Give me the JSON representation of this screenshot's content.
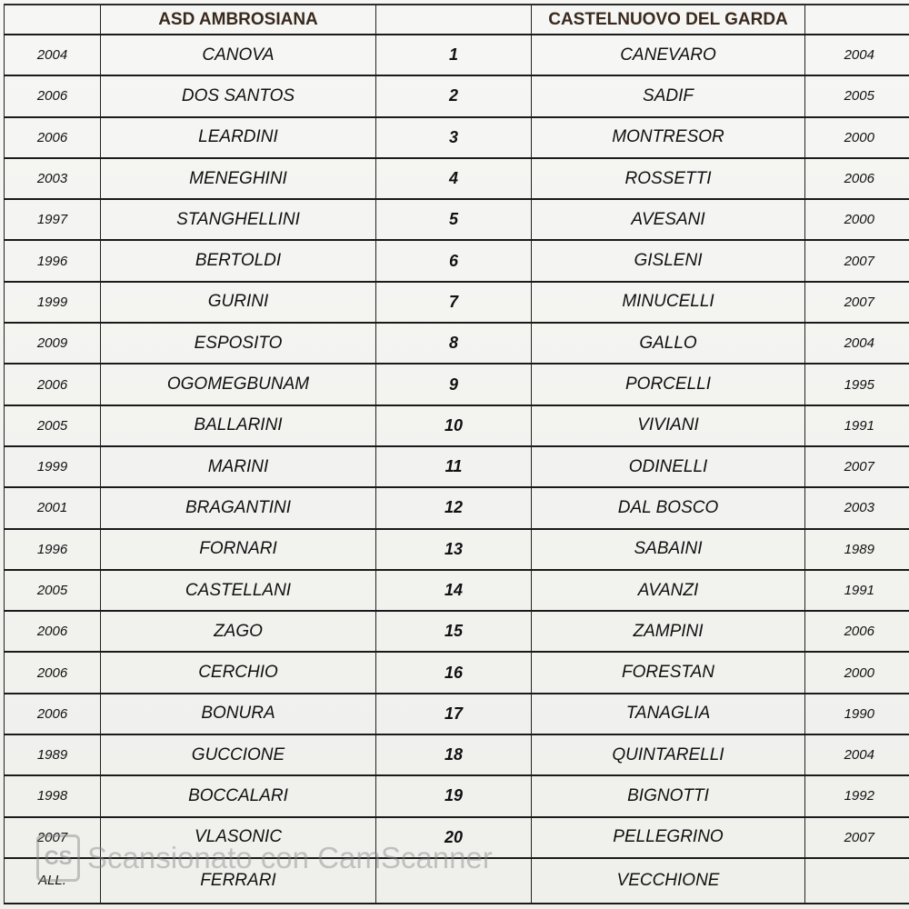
{
  "header": {
    "home_team": "ASD AMBROSIANA",
    "away_team": "CASTELNUOVO DEL GARDA"
  },
  "rows": [
    {
      "home_year": "2004",
      "home": "CANOVA",
      "num": "1",
      "away": "CANEVARO",
      "away_year": "2004"
    },
    {
      "home_year": "2006",
      "home": "DOS SANTOS",
      "num": "2",
      "away": "SADIF",
      "away_year": "2005"
    },
    {
      "home_year": "2006",
      "home": "LEARDINI",
      "num": "3",
      "away": "MONTRESOR",
      "away_year": "2000"
    },
    {
      "home_year": "2003",
      "home": "MENEGHINI",
      "num": "4",
      "away": "ROSSETTI",
      "away_year": "2006"
    },
    {
      "home_year": "1997",
      "home": "STANGHELLINI",
      "num": "5",
      "away": "AVESANI",
      "away_year": "2000"
    },
    {
      "home_year": "1996",
      "home": "BERTOLDI",
      "num": "6",
      "away": "GISLENI",
      "away_year": "2007"
    },
    {
      "home_year": "1999",
      "home": "GURINI",
      "num": "7",
      "away": "MINUCELLI",
      "away_year": "2007"
    },
    {
      "home_year": "2009",
      "home": "ESPOSITO",
      "num": "8",
      "away": "GALLO",
      "away_year": "2004"
    },
    {
      "home_year": "2006",
      "home": "OGOMEGBUNAM",
      "num": "9",
      "away": "PORCELLI",
      "away_year": "1995"
    },
    {
      "home_year": "2005",
      "home": "BALLARINI",
      "num": "10",
      "away": "VIVIANI",
      "away_year": "1991"
    },
    {
      "home_year": "1999",
      "home": "MARINI",
      "num": "11",
      "away": "ODINELLI",
      "away_year": "2007"
    },
    {
      "home_year": "2001",
      "home": "BRAGANTINI",
      "num": "12",
      "away": "DAL BOSCO",
      "away_year": "2003"
    },
    {
      "home_year": "1996",
      "home": "FORNARI",
      "num": "13",
      "away": "SABAINI",
      "away_year": "1989"
    },
    {
      "home_year": "2005",
      "home": "CASTELLANI",
      "num": "14",
      "away": "AVANZI",
      "away_year": "1991"
    },
    {
      "home_year": "2006",
      "home": "ZAGO",
      "num": "15",
      "away": "ZAMPINI",
      "away_year": "2006"
    },
    {
      "home_year": "2006",
      "home": "CERCHIO",
      "num": "16",
      "away": "FORESTAN",
      "away_year": "2000"
    },
    {
      "home_year": "2006",
      "home": "BONURA",
      "num": "17",
      "away": "TANAGLIA",
      "away_year": "1990"
    },
    {
      "home_year": "1989",
      "home": "GUCCIONE",
      "num": "18",
      "away": "QUINTARELLI",
      "away_year": "2004"
    },
    {
      "home_year": "1998",
      "home": "BOCCALARI",
      "num": "19",
      "away": "BIGNOTTI",
      "away_year": "1992"
    },
    {
      "home_year": "2007",
      "home": "VLASONIC",
      "num": "20",
      "away": "PELLEGRINO",
      "away_year": "2007"
    }
  ],
  "staff": {
    "label": "ALL.",
    "home": "FERRARI",
    "away": "VECCHIONE"
  },
  "watermark": {
    "logo": "CS",
    "text": "Scansionato con CamScanner"
  }
}
